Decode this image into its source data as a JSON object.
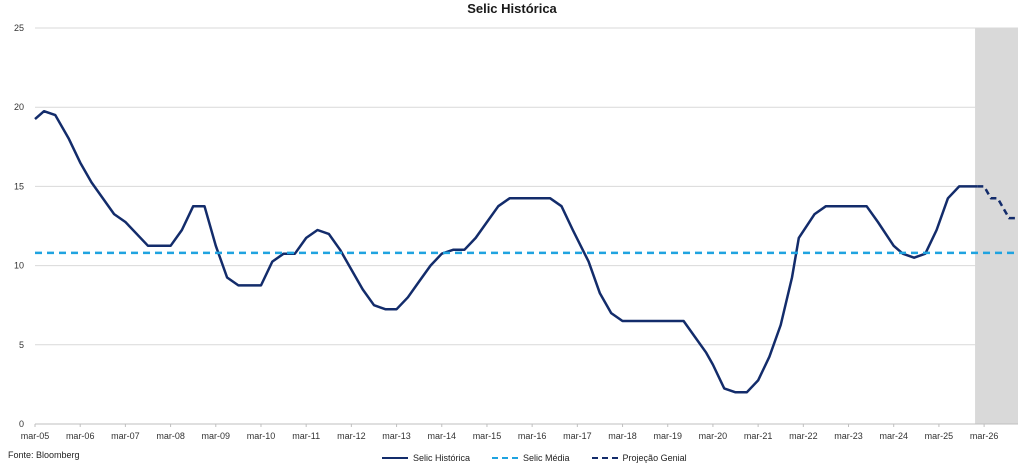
{
  "chart_data": {
    "type": "line",
    "title": "Selic Histórica",
    "source": "Fonte: Bloomberg",
    "ylim": [
      0,
      25
    ],
    "yticks": [
      "0",
      "5",
      "10",
      "15",
      "20",
      "25"
    ],
    "xlim": [
      2005.0,
      2026.75
    ],
    "xtick_labels": [
      "mar-05",
      "mar-06",
      "mar-07",
      "mar-08",
      "mar-09",
      "mar-10",
      "mar-11",
      "mar-12",
      "mar-13",
      "mar-14",
      "mar-15",
      "mar-16",
      "mar-17",
      "mar-18",
      "mar-19",
      "mar-20",
      "mar-21",
      "mar-22",
      "mar-23",
      "mar-24",
      "mar-25",
      "mar-26"
    ],
    "grid": "horizontal",
    "legend_position": "bottom",
    "shaded_region": {
      "x_start": 2025.8,
      "x_end": 2026.75,
      "color": "#d9d9d9"
    },
    "series": [
      {
        "name": "Selic Histórica",
        "style": "solid",
        "color": "#132c6b",
        "points": [
          [
            2005.0,
            19.25
          ],
          [
            2005.2,
            19.75
          ],
          [
            2005.45,
            19.5
          ],
          [
            2005.75,
            18.0
          ],
          [
            2006.0,
            16.5
          ],
          [
            2006.25,
            15.25
          ],
          [
            2006.75,
            13.25
          ],
          [
            2007.0,
            12.75
          ],
          [
            2007.5,
            11.25
          ],
          [
            2007.75,
            11.25
          ],
          [
            2008.0,
            11.25
          ],
          [
            2008.25,
            12.25
          ],
          [
            2008.5,
            13.75
          ],
          [
            2008.75,
            13.75
          ],
          [
            2009.0,
            11.25
          ],
          [
            2009.25,
            9.25
          ],
          [
            2009.5,
            8.75
          ],
          [
            2010.0,
            8.75
          ],
          [
            2010.25,
            10.25
          ],
          [
            2010.5,
            10.75
          ],
          [
            2010.75,
            10.75
          ],
          [
            2011.0,
            11.75
          ],
          [
            2011.25,
            12.25
          ],
          [
            2011.5,
            12.0
          ],
          [
            2011.75,
            11.0
          ],
          [
            2012.0,
            9.75
          ],
          [
            2012.25,
            8.5
          ],
          [
            2012.5,
            7.5
          ],
          [
            2012.75,
            7.25
          ],
          [
            2013.0,
            7.25
          ],
          [
            2013.25,
            8.0
          ],
          [
            2013.5,
            9.0
          ],
          [
            2013.75,
            10.0
          ],
          [
            2014.0,
            10.75
          ],
          [
            2014.25,
            11.0
          ],
          [
            2014.5,
            11.0
          ],
          [
            2014.75,
            11.75
          ],
          [
            2015.0,
            12.75
          ],
          [
            2015.25,
            13.75
          ],
          [
            2015.5,
            14.25
          ],
          [
            2016.0,
            14.25
          ],
          [
            2016.4,
            14.25
          ],
          [
            2016.65,
            13.75
          ],
          [
            2016.9,
            12.25
          ],
          [
            2017.25,
            10.25
          ],
          [
            2017.5,
            8.25
          ],
          [
            2017.75,
            7.0
          ],
          [
            2018.0,
            6.5
          ],
          [
            2018.5,
            6.5
          ],
          [
            2019.0,
            6.5
          ],
          [
            2019.35,
            6.5
          ],
          [
            2019.6,
            5.5
          ],
          [
            2019.85,
            4.5
          ],
          [
            2020.0,
            3.75
          ],
          [
            2020.25,
            2.25
          ],
          [
            2020.5,
            2.0
          ],
          [
            2020.75,
            2.0
          ],
          [
            2021.0,
            2.75
          ],
          [
            2021.25,
            4.25
          ],
          [
            2021.5,
            6.25
          ],
          [
            2021.75,
            9.25
          ],
          [
            2021.9,
            11.75
          ],
          [
            2022.25,
            13.25
          ],
          [
            2022.5,
            13.75
          ],
          [
            2023.0,
            13.75
          ],
          [
            2023.4,
            13.75
          ],
          [
            2023.65,
            12.75
          ],
          [
            2024.0,
            11.25
          ],
          [
            2024.2,
            10.75
          ],
          [
            2024.45,
            10.5
          ],
          [
            2024.7,
            10.75
          ],
          [
            2024.95,
            12.25
          ],
          [
            2025.2,
            14.25
          ],
          [
            2025.45,
            15.0
          ],
          [
            2025.85,
            15.0
          ]
        ]
      },
      {
        "name": "Selic Média",
        "style": "dashed",
        "color": "#1fa3e0",
        "constant": 10.8
      },
      {
        "name": "Projeção Genial",
        "style": "dashed",
        "color": "#132c6b",
        "points": [
          [
            2025.85,
            15.0
          ],
          [
            2026.0,
            15.0
          ],
          [
            2026.15,
            14.25
          ],
          [
            2026.3,
            14.25
          ],
          [
            2026.55,
            13.0
          ],
          [
            2026.75,
            13.0
          ]
        ]
      }
    ]
  }
}
